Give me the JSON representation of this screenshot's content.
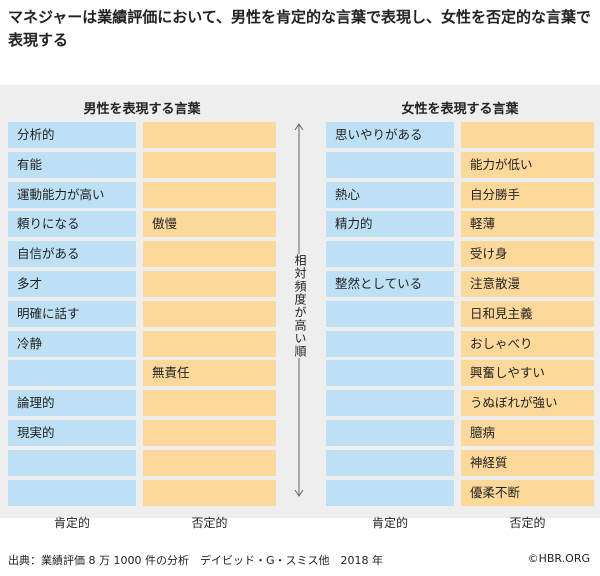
{
  "title": "マネジャーは業績評価において、男性を肯定的な言葉で表現し、女性を否定的な言葉で表現する",
  "chart_data": {
    "type": "table",
    "axis_label": "相対頻度が高い順",
    "column_labels": [
      "肯定的",
      "否定的"
    ],
    "panels": [
      {
        "title": "男性を表現する言葉",
        "positive": [
          "分析的",
          "有能",
          "運動能力が高い",
          "頼りになる",
          "自信がある",
          "多才",
          "明確に話す",
          "冷静",
          "",
          "論理的",
          "現実的",
          "",
          ""
        ],
        "negative": [
          "",
          "",
          "",
          "傲慢",
          "",
          "",
          "",
          "",
          "無責任",
          "",
          "",
          "",
          ""
        ]
      },
      {
        "title": "女性を表現する言葉",
        "positive": [
          "思いやりがある",
          "",
          "熱心",
          "精力的",
          "",
          "整然としている",
          "",
          "",
          "",
          "",
          "",
          "",
          ""
        ],
        "negative": [
          "",
          "能力が低い",
          "自分勝手",
          "軽薄",
          "受け身",
          "注意散漫",
          "日和見主義",
          "おしゃべり",
          "興奮しやすい",
          "うぬぼれが強い",
          "臆病",
          "神経質",
          "優柔不断"
        ]
      }
    ]
  },
  "source": "出典：業績評価 8 万 1000 件の分析　デイビッド・G・スミス他　2018 年",
  "credit": "©HBR.ORG",
  "colors": {
    "positive": "#bde0f5",
    "negative": "#fdd89b",
    "band": "#eeeeee"
  }
}
